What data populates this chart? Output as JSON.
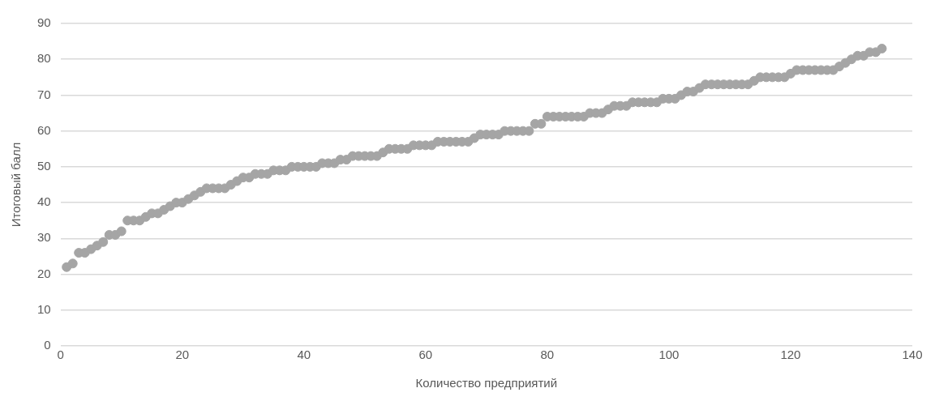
{
  "chart_data": {
    "type": "scatter",
    "xlabel": "Количество предприятий",
    "ylabel": "Итоговый балл",
    "x": [
      1,
      2,
      3,
      4,
      5,
      6,
      7,
      8,
      9,
      10,
      11,
      12,
      13,
      14,
      15,
      16,
      17,
      18,
      19,
      20,
      21,
      22,
      23,
      24,
      25,
      26,
      27,
      28,
      29,
      30,
      31,
      32,
      33,
      34,
      35,
      36,
      37,
      38,
      39,
      40,
      41,
      42,
      43,
      44,
      45,
      46,
      47,
      48,
      49,
      50,
      51,
      52,
      53,
      54,
      55,
      56,
      57,
      58,
      59,
      60,
      61,
      62,
      63,
      64,
      65,
      66,
      67,
      68,
      69,
      70,
      71,
      72,
      73,
      74,
      75,
      76,
      77,
      78,
      79,
      80,
      81,
      82,
      83,
      84,
      85,
      86,
      87,
      88,
      89,
      90,
      91,
      92,
      93,
      94,
      95,
      96,
      97,
      98,
      99,
      100,
      101,
      102,
      103,
      104,
      105,
      106,
      107,
      108,
      109,
      110,
      111,
      112,
      113,
      114,
      115,
      116,
      117,
      118,
      119,
      120,
      121,
      122,
      123,
      124,
      125,
      126,
      127,
      128,
      129,
      130,
      131,
      132,
      133,
      134,
      135
    ],
    "series": [
      {
        "color": "#a5a5a5",
        "values": [
          22,
          23,
          26,
          26,
          27,
          28,
          29,
          31,
          31,
          32,
          35,
          35,
          35,
          36,
          37,
          37,
          38,
          39,
          40,
          40,
          41,
          42,
          43,
          44,
          44,
          44,
          44,
          45,
          46,
          47,
          47,
          48,
          48,
          48,
          49,
          49,
          49,
          50,
          50,
          50,
          50,
          50,
          51,
          51,
          51,
          52,
          52,
          53,
          53,
          53,
          53,
          53,
          54,
          55,
          55,
          55,
          55,
          56,
          56,
          56,
          56,
          57,
          57,
          57,
          57,
          57,
          57,
          58,
          59,
          59,
          59,
          59,
          60,
          60,
          60,
          60,
          60,
          62,
          62,
          64,
          64,
          64,
          64,
          64,
          64,
          64,
          65,
          65,
          65,
          66,
          67,
          67,
          67,
          68,
          68,
          68,
          68,
          68,
          69,
          69,
          69,
          70,
          71,
          71,
          72,
          73,
          73,
          73,
          73,
          73,
          73,
          73,
          73,
          74,
          75,
          75,
          75,
          75,
          75,
          76,
          77,
          77,
          77,
          77,
          77,
          77,
          77,
          78,
          79,
          80,
          81,
          81,
          82,
          82,
          83
        ]
      }
    ],
    "xlim": [
      0,
      140
    ],
    "xticks": [
      0,
      20,
      40,
      60,
      80,
      100,
      120,
      140
    ],
    "ylim": [
      0,
      90
    ],
    "yticks": [
      0,
      10,
      20,
      30,
      40,
      50,
      60,
      70,
      80,
      90
    ],
    "grid": "y",
    "marker": "circle"
  }
}
